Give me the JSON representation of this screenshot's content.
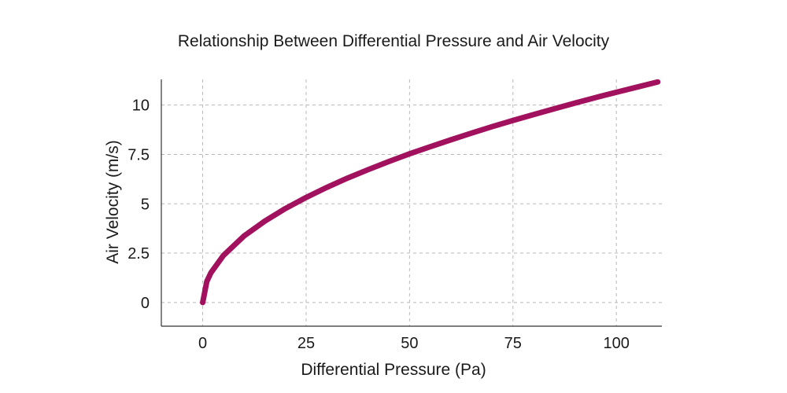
{
  "chart_data": {
    "type": "line",
    "title": "Relationship Between Differential Pressure and Air Velocity",
    "xlabel": "Differential Pressure (Pa)",
    "ylabel": "Air Velocity (m/s)",
    "xlim": [
      -10,
      111
    ],
    "ylim": [
      -1.2,
      11.3
    ],
    "x_ticks": [
      0,
      25,
      50,
      75,
      100
    ],
    "x_tick_labels": [
      "0",
      "25",
      "50",
      "75",
      "100"
    ],
    "y_ticks": [
      0,
      2.5,
      5,
      7.5,
      10
    ],
    "y_tick_labels": [
      "0",
      "2.5",
      "5",
      "7.5",
      "10"
    ],
    "grid": true,
    "legend": "none",
    "series": [
      {
        "color": "#A2115E",
        "x": [
          0,
          1,
          2,
          5,
          10,
          15,
          20,
          25,
          30,
          35,
          40,
          45,
          50,
          55,
          60,
          65,
          70,
          75,
          80,
          85,
          90,
          95,
          100,
          105,
          110
        ],
        "y": [
          0,
          1.07,
          1.51,
          2.38,
          3.37,
          4.12,
          4.76,
          5.32,
          5.83,
          6.3,
          6.73,
          7.14,
          7.53,
          7.89,
          8.24,
          8.58,
          8.91,
          9.22,
          9.52,
          9.81,
          10.1,
          10.38,
          10.65,
          10.91,
          11.17
        ]
      }
    ]
  }
}
